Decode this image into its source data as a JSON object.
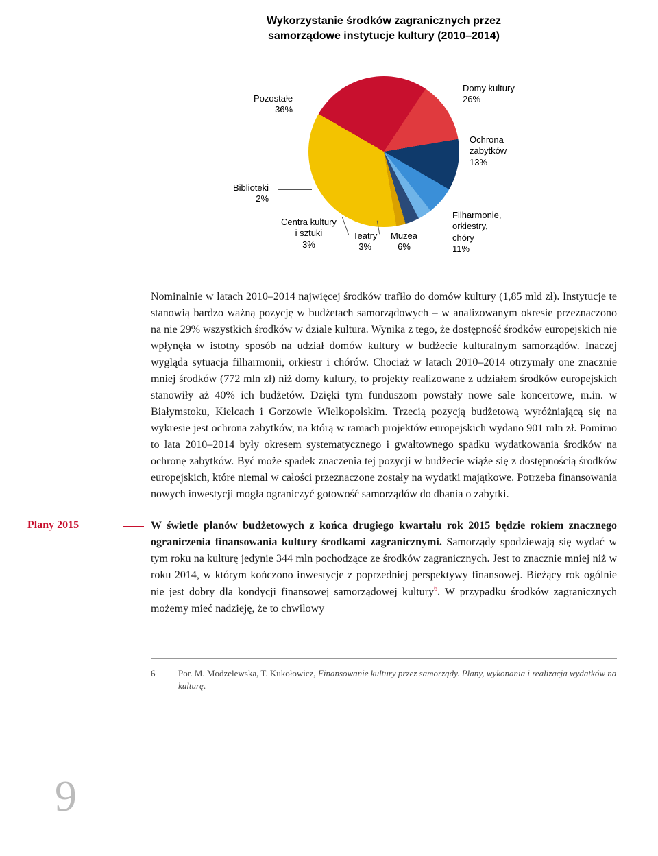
{
  "chart": {
    "title": "Wykorzystanie środków zagranicznych przez\nsamorządowe instytucje kultury (2010–2014)",
    "type": "pie",
    "background_color": "#ffffff",
    "slices": [
      {
        "label": "Domy kultury",
        "pct": 26,
        "color": "#c8102e"
      },
      {
        "label": "Ochrona zabytków",
        "pct": 13,
        "color": "#e03a3e"
      },
      {
        "label": "Filharmonie, orkiestry, chóry",
        "pct": 11,
        "color": "#0f3a6b"
      },
      {
        "label": "Muzea",
        "pct": 6,
        "color": "#3a8fd8"
      },
      {
        "label": "Teatry",
        "pct": 3,
        "color": "#6fb4e8"
      },
      {
        "label": "Centra kultury i sztuki",
        "pct": 3,
        "color": "#2a4a78"
      },
      {
        "label": "Biblioteki",
        "pct": 2,
        "color": "#d9a000"
      },
      {
        "label": "Pozostałe",
        "pct": 36,
        "color": "#f3c300"
      }
    ],
    "label_fontsize": 13,
    "title_fontsize": 16
  },
  "para1": "Nominalnie w latach 2010–2014 najwięcej środków trafiło do domów kultury (1,85 mld zł). Instytucje te stanowią bardzo ważną pozycję w budżetach samorządowych – w analizowanym okresie przeznaczono na nie 29% wszystkich środków w dziale kultura. Wynika z tego, że dostępność środków europejskich nie wpłynęła w istotny sposób na udział domów kultury w budżecie kulturalnym samorządów. Inaczej wygląda sytuacja filharmonii, orkiestr i chórów. Chociaż w latach 2010–2014 otrzymały one znacznie mniej środków (772 mln zł) niż domy kultury, to projekty realizowane z udziałem środków europejskich stanowiły aż 40% ich budżetów. Dzięki tym funduszom powstały nowe sale koncertowe, m.in. w Białymstoku, Kielcach i Gorzowie Wielkopolskim. Trzecią pozycją budżetową wyróżniającą się na wykresie jest ochrona zabytków, na którą w ramach projektów europejskich wydano 901 mln zł. Pomimo to lata 2010–2014 były okresem systematycznego i gwałtownego spadku wydatkowania środków na ochronę zabytków. Być może spadek znaczenia tej pozycji w budżecie wiąże się z dostępnością środków europejskich, które niemal w całości przeznaczone zostały na wydatki majątkowe. Potrzeba finansowania nowych inwestycji mogła ograniczyć gotowość samorządów do dbania o zabytki.",
  "section2": {
    "label": "Plany 2015",
    "body_lead": "W świetle planów budżetowych z końca drugiego kwartału rok 2015 będzie rokiem znacznego ograniczenia finansowania kultury środkami zagranicznymi.",
    "body_rest": " Samorządy spodziewają się wydać w tym roku na kulturę jedynie 344 mln pochodzące ze środków zagranicznych. Jest to znacznie mniej niż w roku 2014, w którym kończono inwestycje z poprzedniej perspektywy finansowej. Bieżący rok ogólnie nie jest dobry dla kondycji finansowej samorządowej kultury",
    "body_tail": ". W przypadku środków zagranicznych możemy mieć nadzieję, że to chwilowy",
    "footnote_marker": "6"
  },
  "footnote": {
    "num": "6",
    "text_prefix": "Por. M. Modzelewska, T. Kukołowicz, ",
    "text_italic": "Finansowanie kultury przez samorządy. Plany, wykonania i realizacja wydatków na kulturę",
    "text_suffix": "."
  },
  "page_number": "9"
}
